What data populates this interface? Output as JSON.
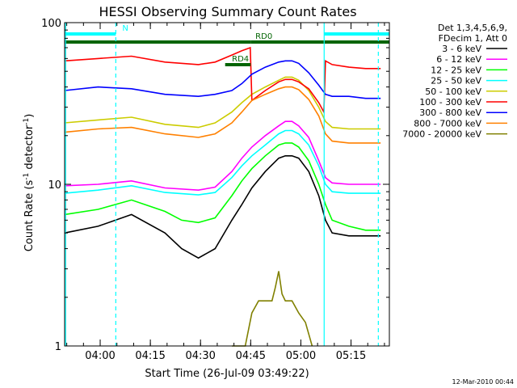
{
  "chart_data": {
    "type": "line",
    "title": "HESSI Observing Summary Count Rates",
    "xlabel": "Start Time (26-Jul-09 03:49:22)",
    "ylabel_main": "Count Rate (s",
    "ylabel_sup1": "-1",
    "ylabel_mid": " detector",
    "ylabel_sup2": "-1",
    "ylabel_end": ")",
    "x_ticks": [
      "04:00",
      "04:15",
      "04:30",
      "04:45",
      "05:00",
      "05:15"
    ],
    "x_tick_minutes": [
      10.633,
      25.633,
      40.633,
      55.633,
      70.633,
      85.633
    ],
    "xlim_minutes": [
      0,
      97.1
    ],
    "y_scale": "log",
    "ylim": [
      1,
      100
    ],
    "y_ticks": [
      "1",
      "10",
      "100"
    ],
    "legend_title": [
      "Det 1,3,4,5,6,9,",
      "FDecim 1, Att 0"
    ],
    "footer_date": "12-Mar-2010 00:44",
    "bars": [
      {
        "label": "N",
        "color": "#00ffff",
        "start_min": 0.0,
        "end_min": 15.3,
        "level": 0.965
      },
      {
        "label": "",
        "color": "#00ffff",
        "start_min": 77.6,
        "end_min": 97.1,
        "level": 0.965
      },
      {
        "label": "",
        "color": "#006400",
        "start_min": 0.0,
        "end_min": 55.6,
        "level": 0.94
      },
      {
        "label": "RD4",
        "color": "#006400",
        "start_min": 48.0,
        "end_min": 55.6,
        "level": 0.87
      },
      {
        "label": "RD0",
        "color": "#006400",
        "start_min": 55.6,
        "end_min": 77.6,
        "level": 0.94
      },
      {
        "label": "",
        "color": "#006400",
        "start_min": 77.6,
        "end_min": 97.1,
        "level": 0.94
      }
    ],
    "vlines": [
      {
        "minute": 0.3,
        "color": "#00ffff",
        "style": "solid"
      },
      {
        "minute": 15.3,
        "color": "#00ffff",
        "style": "dashed"
      },
      {
        "minute": 77.6,
        "color": "#00ffff",
        "style": "solid"
      },
      {
        "minute": 93.8,
        "color": "#00ffff",
        "style": "dashed"
      }
    ],
    "series": [
      {
        "name": "3 - 6 keV",
        "color": "#000000",
        "x": [
          0,
          10,
          20,
          30,
          35,
          40,
          45,
          50,
          53,
          56,
          60,
          64,
          66,
          68,
          70,
          73,
          76,
          78,
          80,
          85,
          90,
          94.5
        ],
        "y": [
          5.0,
          5.5,
          6.5,
          5.0,
          4.0,
          3.5,
          4.0,
          6.0,
          7.5,
          9.5,
          12.0,
          14.5,
          15.0,
          15.0,
          14.5,
          12.0,
          8.5,
          6.0,
          5.0,
          4.8,
          4.8,
          4.8
        ]
      },
      {
        "name": "6 - 12 keV",
        "color": "#ff00ff",
        "x": [
          0,
          10,
          20,
          30,
          40,
          45,
          50,
          53,
          56,
          60,
          64,
          66,
          68,
          70,
          73,
          76,
          78,
          80,
          85,
          90,
          94.5
        ],
        "y": [
          9.8,
          10.0,
          10.5,
          9.5,
          9.2,
          9.6,
          12.0,
          14.5,
          17.0,
          20.0,
          23.0,
          24.5,
          24.5,
          23.0,
          19.5,
          14.0,
          11.0,
          10.2,
          10.0,
          10.0,
          10.0
        ]
      },
      {
        "name": "12 - 25 keV",
        "color": "#00ff00",
        "x": [
          0,
          10,
          20,
          30,
          35,
          40,
          45,
          50,
          53,
          56,
          60,
          64,
          66,
          68,
          70,
          73,
          76,
          78,
          80,
          85,
          90,
          94.5
        ],
        "y": [
          6.5,
          7.0,
          8.0,
          6.8,
          6.0,
          5.8,
          6.2,
          8.5,
          10.5,
          12.5,
          15.0,
          17.5,
          18.0,
          18.0,
          17.0,
          14.0,
          10.0,
          7.5,
          6.0,
          5.5,
          5.2,
          5.2
        ]
      },
      {
        "name": "25 - 50 keV",
        "color": "#00ffff",
        "x": [
          0,
          10,
          20,
          30,
          40,
          45,
          50,
          53,
          56,
          60,
          64,
          66,
          68,
          70,
          73,
          76,
          78,
          80,
          85,
          90,
          94.5
        ],
        "y": [
          8.8,
          9.2,
          9.8,
          8.9,
          8.6,
          8.9,
          11.0,
          13.0,
          15.0,
          17.5,
          20.5,
          21.5,
          21.5,
          20.5,
          17.5,
          13.0,
          10.0,
          9.0,
          8.8,
          8.8,
          8.8
        ]
      },
      {
        "name": "50 - 100 keV",
        "color": "#cccc00",
        "x": [
          0,
          10,
          20,
          30,
          40,
          45,
          50,
          53,
          56,
          60,
          64,
          66,
          68,
          70,
          73,
          76,
          78,
          80,
          85,
          90,
          94.5
        ],
        "y": [
          24.0,
          25.0,
          26.0,
          23.5,
          22.5,
          24.0,
          28.0,
          32.0,
          36.0,
          40.0,
          44.0,
          46.0,
          46.0,
          44.0,
          38.0,
          30.0,
          24.5,
          22.5,
          22.0,
          22.0,
          22.0
        ]
      },
      {
        "name": "100 - 300 keV",
        "color": "#ff0000",
        "x": [
          0,
          10,
          20,
          30,
          40,
          45,
          50,
          53,
          55.5,
          56,
          60,
          64,
          66,
          68,
          70,
          73,
          76,
          77.5,
          78,
          80,
          85,
          90,
          94.5
        ],
        "y": [
          58.0,
          60.0,
          62.0,
          57.0,
          55.0,
          57.0,
          63.0,
          67.0,
          70.0,
          33.0,
          38.0,
          43.0,
          44.5,
          44.5,
          43.0,
          39.0,
          32.0,
          28.0,
          58.0,
          55.0,
          53.0,
          52.0,
          52.0
        ]
      },
      {
        "name": "300 - 800 keV",
        "color": "#0000ff",
        "x": [
          0,
          10,
          20,
          30,
          40,
          45,
          50,
          53,
          56,
          60,
          64,
          66,
          68,
          70,
          73,
          76,
          78,
          80,
          85,
          90,
          94.5
        ],
        "y": [
          38.0,
          40.0,
          39.0,
          36.0,
          35.0,
          36.0,
          38.0,
          42.0,
          48.0,
          53.0,
          57.0,
          58.0,
          58.0,
          56.0,
          49.0,
          41.0,
          36.0,
          35.0,
          35.0,
          34.0,
          34.0
        ]
      },
      {
        "name": "800 - 7000 keV",
        "color": "#ff8000",
        "x": [
          0,
          10,
          20,
          30,
          40,
          45,
          50,
          53,
          56,
          60,
          64,
          66,
          68,
          70,
          73,
          76,
          78,
          80,
          85,
          90,
          94.5
        ],
        "y": [
          21.0,
          22.0,
          22.5,
          20.5,
          19.5,
          20.5,
          24.0,
          28.0,
          33.0,
          36.0,
          39.0,
          40.0,
          40.0,
          38.5,
          33.5,
          26.5,
          20.5,
          18.5,
          18.0,
          18.0,
          18.0
        ]
      },
      {
        "name": "7000 - 20000 keV",
        "color": "#808000",
        "x": [
          50,
          52,
          54,
          56,
          58,
          60,
          62,
          63,
          64,
          65,
          66,
          67,
          68,
          70,
          72,
          74
        ],
        "y": [
          1.0,
          1.0,
          1.0,
          1.6,
          1.9,
          1.9,
          1.9,
          2.3,
          2.9,
          2.1,
          1.9,
          1.9,
          1.9,
          1.6,
          1.4,
          1.0
        ]
      }
    ],
    "grid": false,
    "legend_position": "right"
  }
}
